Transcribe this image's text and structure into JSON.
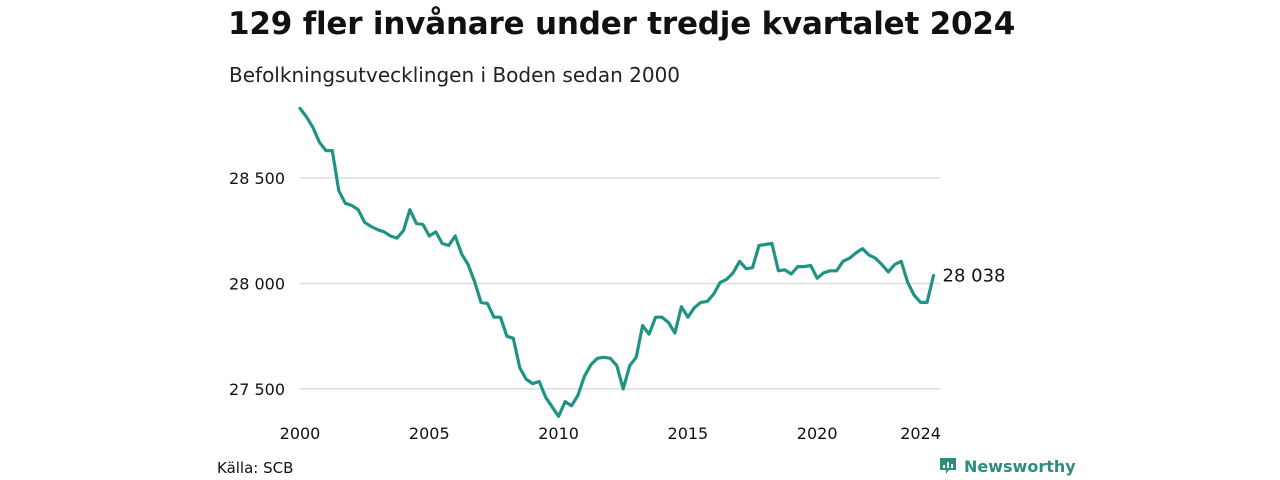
{
  "title": "129 fler invånare under tredje kvartalet 2024",
  "subtitle": "Befolkningsutvecklingen i Boden sedan 2000",
  "source": "Källa: SCB",
  "brand": "Newsworthy",
  "colors": {
    "line": "#1f9384",
    "grid": "#dddddd",
    "brand": "#2a8f80"
  },
  "chart_data": {
    "type": "line",
    "title": "129 fler invånare under tredje kvartalet 2024",
    "subtitle": "Befolkningsutvecklingen i Boden sedan 2000",
    "xlabel": "",
    "ylabel": "",
    "xlim": [
      2000,
      2024.75
    ],
    "ylim": [
      27400,
      28870
    ],
    "grid": "horizontal",
    "x_ticks": [
      2000,
      2005,
      2010,
      2015,
      2020,
      2024
    ],
    "x_tick_labels": [
      "2000",
      "2005",
      "2010",
      "2015",
      "2020",
      "2024"
    ],
    "y_ticks": [
      27500,
      28000,
      28500
    ],
    "y_tick_labels": [
      "27 500",
      "28 000",
      "28 500"
    ],
    "end_label": "28 038",
    "series": [
      {
        "start_year": 2000,
        "period": "quarter",
        "values": [
          28830,
          28790,
          28740,
          28670,
          28630,
          28630,
          28440,
          28380,
          28370,
          28350,
          28290,
          28270,
          28255,
          28245,
          28225,
          28215,
          28250,
          28350,
          28285,
          28280,
          28225,
          28245,
          28190,
          28180,
          28225,
          28140,
          28090,
          28010,
          27910,
          27905,
          27840,
          27840,
          27750,
          27740,
          27600,
          27545,
          27525,
          27535,
          27460,
          27415,
          27370,
          27440,
          27420,
          27470,
          27560,
          27615,
          27645,
          27650,
          27645,
          27610,
          27500,
          27610,
          27650,
          27800,
          27760,
          27840,
          27840,
          27815,
          27765,
          27890,
          27840,
          27885,
          27910,
          27915,
          27950,
          28005,
          28020,
          28050,
          28105,
          28070,
          28075,
          28180,
          28185,
          28190,
          28060,
          28065,
          28045,
          28080,
          28080,
          28085,
          28025,
          28050,
          28060,
          28060,
          28105,
          28120,
          28145,
          28165,
          28135,
          28120,
          28090,
          28055,
          28090,
          28105,
          28005,
          27945,
          27910,
          27910,
          28038
        ]
      }
    ]
  }
}
